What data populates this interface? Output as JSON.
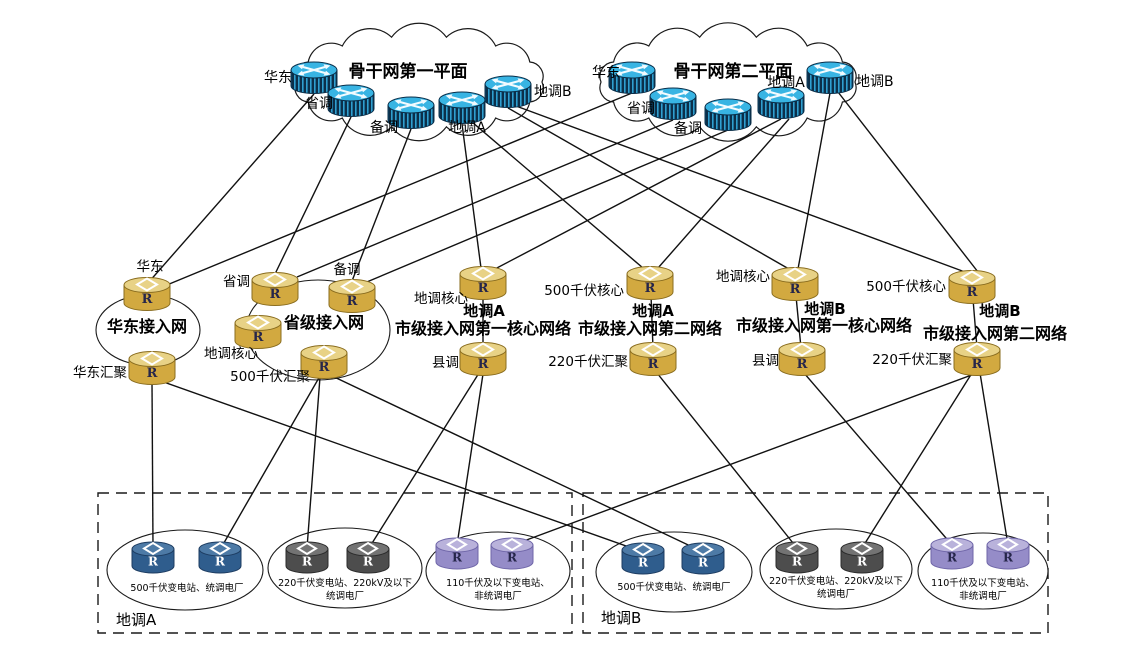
{
  "colors": {
    "backbone_top": "#38b4e3",
    "backbone_body": "#0b2f4a",
    "backbone_stripe": "#2f9fd0",
    "access_body": "#d2a940",
    "access_top": "#e8d286",
    "station_500kv_body": "#2f5d8d",
    "station_500kv_top": "#4d7aa6",
    "station_220kv_body": "#4d4d4d",
    "station_220kv_top": "#737373",
    "station_110kv_body": "#958cc8",
    "station_110kv_top": "#b9b2db",
    "edge": "#111111"
  },
  "router_letter": "R",
  "backbone_planes": [
    {
      "title": "骨干网第一平面",
      "routers": [
        "华东",
        "省调",
        "备调",
        "地调A",
        "地调B"
      ]
    },
    {
      "title": "骨干网第二平面",
      "routers": [
        "华东",
        "省调",
        "备调",
        "地调A",
        "地调B"
      ]
    }
  ],
  "regional_network": {
    "name": "华东接入网",
    "router_top": "华东",
    "router_bottom": "华东汇聚"
  },
  "provincial_network": {
    "name": "省级接入网",
    "routers": [
      "省调",
      "备调",
      "地调核心",
      "500千伏汇聚"
    ]
  },
  "city_networks": [
    {
      "org": "地调A",
      "name": "市级接入网第一核心网络",
      "router_top": "地调核心",
      "router_bottom": "县调"
    },
    {
      "org": "地调A",
      "name": "市级接入网第二网络",
      "router_top": "500千伏核心",
      "router_bottom": "220千伏汇聚"
    },
    {
      "org": "地调B",
      "name": "市级接入网第一核心网络",
      "router_top": "地调核心",
      "router_bottom": "县调"
    },
    {
      "org": "地调B",
      "name": "市级接入网第二网络",
      "router_top": "500千伏核心",
      "router_bottom": "220千伏汇聚"
    }
  ],
  "station_zones": [
    {
      "label": "地调A",
      "groups": [
        {
          "line1": "500千伏变电站、统调电厂",
          "line2": ""
        },
        {
          "line1": "220千伏变电站、220kV及以下",
          "line2": "统调电厂"
        },
        {
          "line1": "110千伏及以下变电站、",
          "line2": "非统调电厂"
        }
      ]
    },
    {
      "label": "地调B",
      "groups": [
        {
          "line1": "500千伏变电站、统调电厂",
          "line2": ""
        },
        {
          "line1": "220千伏变电站、220kV及以下",
          "line2": "统调电厂"
        },
        {
          "line1": "110千伏及以下变电站、",
          "line2": "非统调电厂"
        }
      ]
    }
  ]
}
